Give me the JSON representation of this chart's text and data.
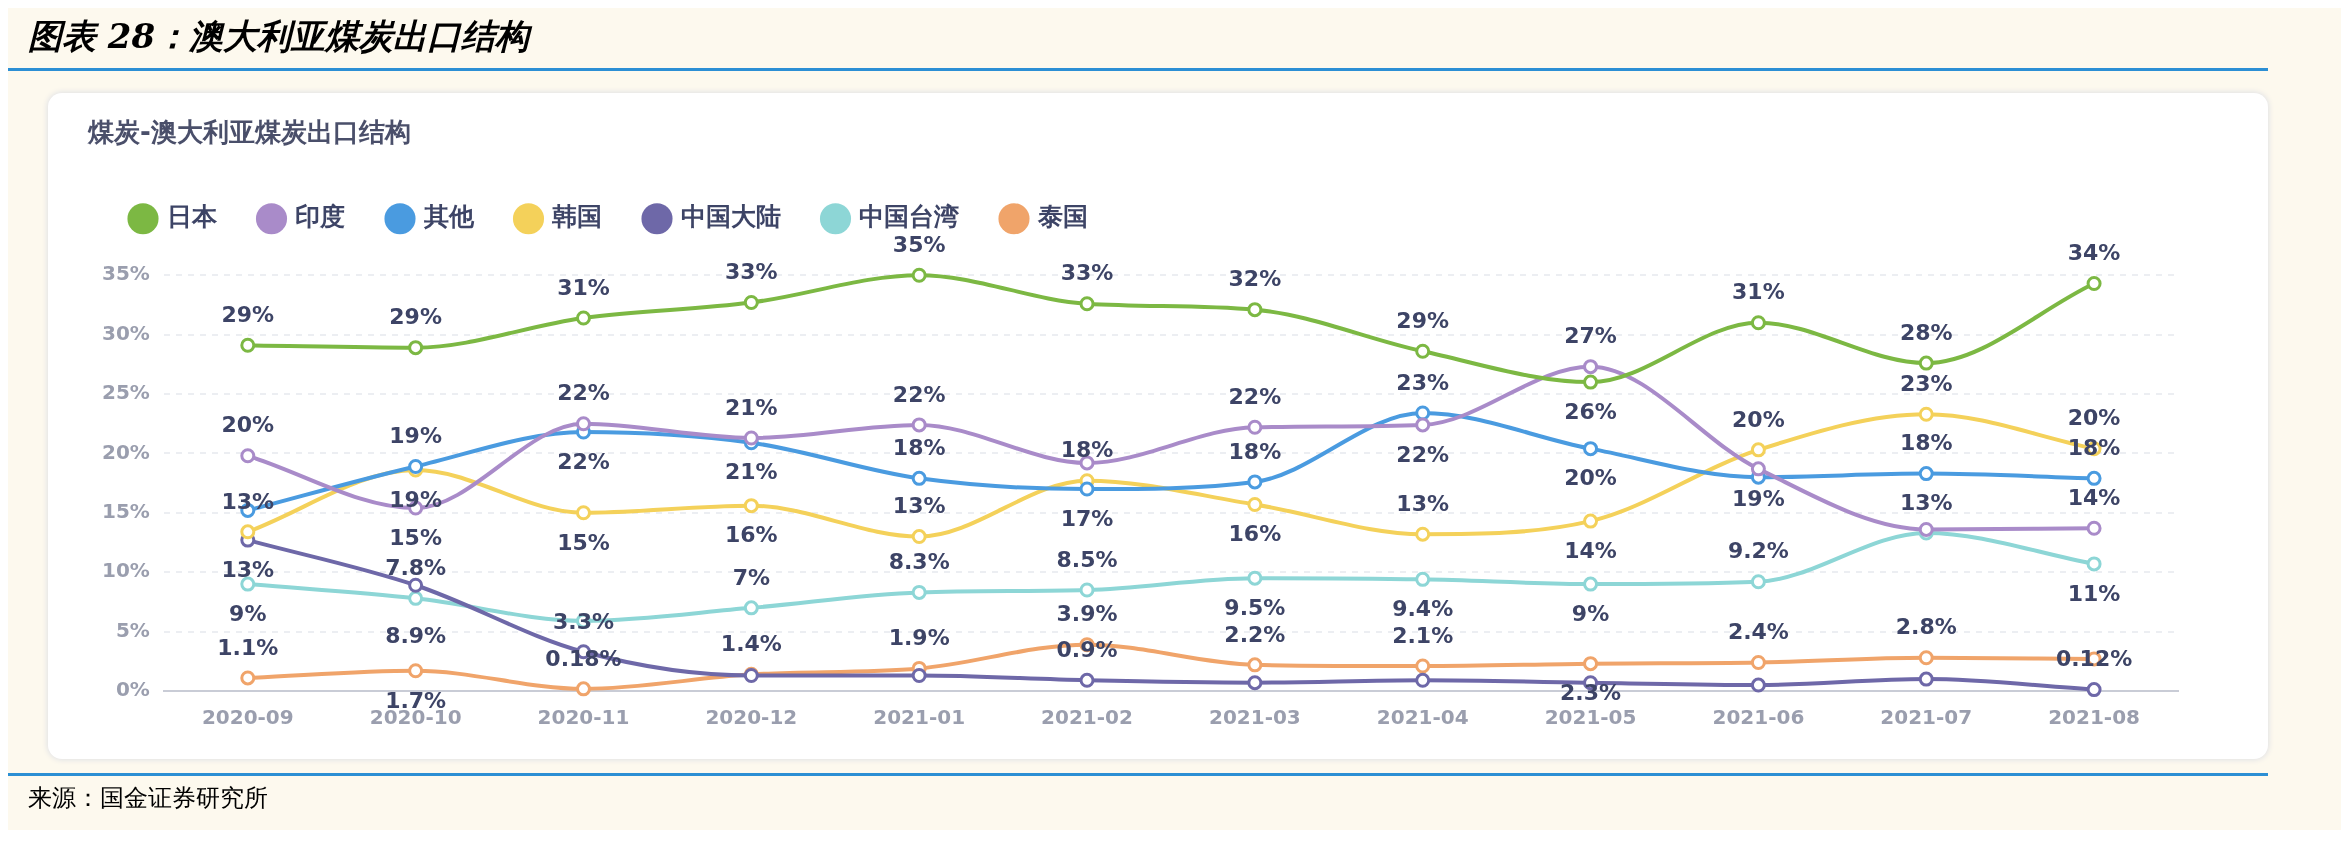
{
  "chart_data": {
    "type": "line",
    "title": "图表 28：澳大利亚煤炭出口结构",
    "subtitle": "煤炭-澳大利亚煤炭出口结构",
    "annotations": [
      "来源：国金证券研究所"
    ],
    "categories": [
      "2020-09",
      "2020-10",
      "2020-11",
      "2020-12",
      "2021-01",
      "2021-02",
      "2021-03",
      "2021-04",
      "2021-05",
      "2021-06",
      "2021-07",
      "2021-08"
    ],
    "series": [
      {
        "name": "日本",
        "color": "#7cb843",
        "values": [
          29.1,
          28.9,
          31.4,
          32.7,
          35.0,
          32.6,
          32.1,
          28.6,
          26.0,
          31.0,
          27.6,
          34.3
        ],
        "value_labels": [
          "29%",
          "29%",
          "31%",
          "33%",
          "35%",
          "33%",
          "32%",
          "29%",
          "26%",
          "31%",
          "28%",
          "34%"
        ]
      },
      {
        "name": "印度",
        "color": "#a98bc9",
        "values": [
          19.8,
          15.4,
          22.5,
          21.3,
          22.4,
          19.2,
          22.2,
          22.4,
          27.3,
          18.7,
          13.6,
          13.7
        ],
        "value_labels": [
          "20%",
          "15%",
          "22%",
          "21%",
          "22%",
          null,
          "22%",
          "22%",
          "27%",
          "19%",
          null,
          "14%"
        ]
      },
      {
        "name": "其他",
        "color": "#4a9be0",
        "values": [
          15.2,
          18.9,
          21.8,
          20.9,
          17.9,
          17.0,
          17.6,
          23.4,
          20.4,
          18.0,
          18.3,
          17.9
        ],
        "value_labels": [
          null,
          "19%",
          "22%",
          "21%",
          "18%",
          "17%",
          "18%",
          "23%",
          "20%",
          null,
          "18%",
          "18%"
        ]
      },
      {
        "name": "韩国",
        "color": "#f4d15a",
        "values": [
          13.4,
          18.6,
          15.0,
          15.6,
          13.0,
          17.7,
          15.7,
          13.2,
          14.3,
          20.3,
          23.3,
          20.4
        ],
        "value_labels": [
          "13%",
          "19%",
          "15%",
          "16%",
          "13%",
          "18%",
          "16%",
          "13%",
          "14%",
          "20%",
          "23%",
          "20%"
        ]
      },
      {
        "name": "中国大陆",
        "color": "#6e68a8",
        "values": [
          12.7,
          8.9,
          3.3,
          1.3,
          1.3,
          0.9,
          0.7,
          0.9,
          0.7,
          0.5,
          1.0,
          0.12
        ],
        "value_labels": [
          "13%",
          "8.9%",
          "3.3%",
          null,
          null,
          "0.9%",
          null,
          null,
          null,
          null,
          null,
          "0.12%"
        ]
      },
      {
        "name": "中国台湾",
        "color": "#8dd6d6",
        "values": [
          9.0,
          7.8,
          5.9,
          7.0,
          8.3,
          8.5,
          9.5,
          9.4,
          9.0,
          9.2,
          13.3,
          10.7
        ],
        "value_labels": [
          "9%",
          "7.8%",
          null,
          "7%",
          "8.3%",
          "8.5%",
          "9.5%",
          "9.4%",
          "9%",
          "9.2%",
          "13%",
          "11%"
        ]
      },
      {
        "name": "泰国",
        "color": "#f0a46a",
        "values": [
          1.1,
          1.7,
          0.18,
          1.4,
          1.9,
          3.9,
          2.2,
          2.1,
          2.3,
          2.4,
          2.8,
          2.7
        ],
        "value_labels": [
          "1.1%",
          "1.7%",
          "0.18%",
          "1.4%",
          "1.9%",
          "3.9%",
          "2.2%",
          "2.1%",
          "2.3%",
          "2.4%",
          "2.8%",
          null
        ]
      }
    ],
    "ylim": [
      0,
      35
    ],
    "yticks": [
      {
        "value": 0,
        "label": "0%"
      },
      {
        "value": 5,
        "label": "5%"
      },
      {
        "value": 10,
        "label": "10%"
      },
      {
        "value": 15,
        "label": "15%"
      },
      {
        "value": 20,
        "label": "20%"
      },
      {
        "value": 25,
        "label": "25%"
      },
      {
        "value": 30,
        "label": "30%"
      },
      {
        "value": 35,
        "label": "35%"
      }
    ],
    "grid": "y",
    "legend": "top left",
    "marker": "circle",
    "line_style": "solid"
  }
}
